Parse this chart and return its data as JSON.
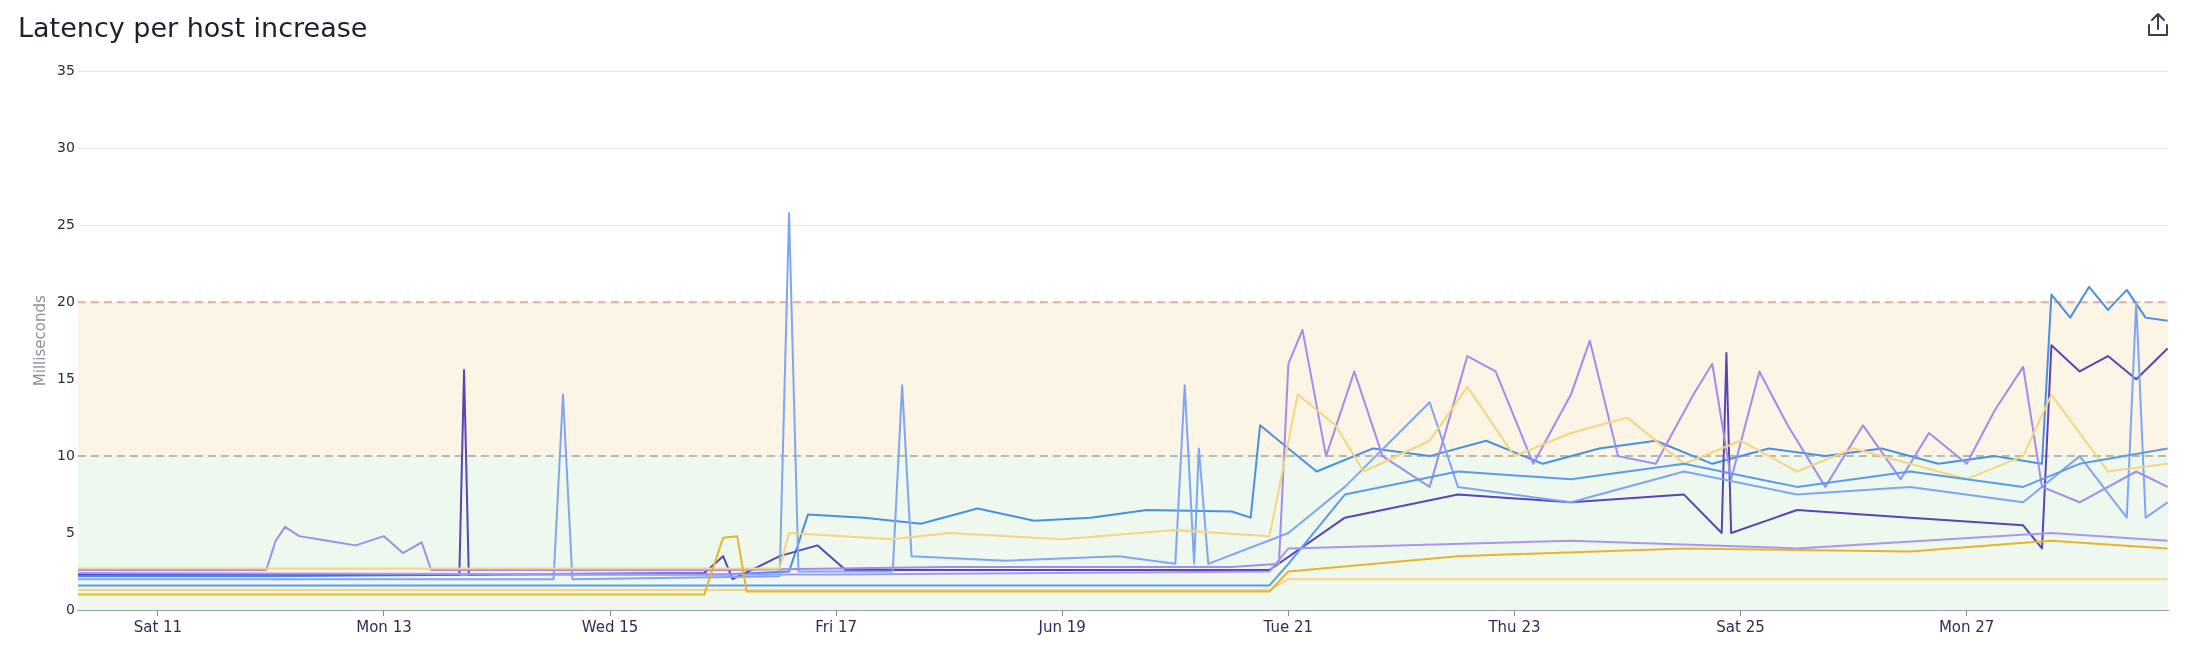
{
  "chart_data": {
    "type": "line",
    "title": "Latency per host increase",
    "ylabel": "Milliseconds",
    "ylim": [
      0,
      35
    ],
    "yticks": [
      0,
      5,
      10,
      15,
      20,
      25,
      30,
      35
    ],
    "xlim": [
      "--06-10T07:00",
      "--06-28T18:45"
    ],
    "xticks": [
      {
        "value": "--06-11",
        "label": "Sat 11"
      },
      {
        "value": "--06-13",
        "label": "Mon 13"
      },
      {
        "value": "--06-15",
        "label": "Wed 15"
      },
      {
        "value": "--06-17",
        "label": "Fri 17"
      },
      {
        "value": "--06-19",
        "label": "Jun 19"
      },
      {
        "value": "--06-21",
        "label": "Tue 21"
      },
      {
        "value": "--06-23",
        "label": "Thu 23"
      },
      {
        "value": "--06-25",
        "label": "Sat 25"
      },
      {
        "value": "--06-27",
        "label": "Mon 27"
      }
    ],
    "grid": "y",
    "legend": false,
    "line_style": "solid",
    "bands": [
      {
        "axis": "y",
        "from": 0,
        "to": 10,
        "color": "#eef8ef"
      },
      {
        "axis": "y",
        "from": 10,
        "to": 20,
        "color": "#fcf4e4"
      }
    ],
    "ref_lines": [
      {
        "axis": "y",
        "value": 20,
        "color": "#eea898",
        "line_style": "dashed"
      },
      {
        "axis": "y",
        "value": 10,
        "color": "#b4bca8",
        "line_style": "dashed"
      }
    ],
    "series": [
      {
        "color": "#e5b52e",
        "x": [
          "--06-10T07:00",
          "--06-15T20:00",
          "--06-16T00:00",
          "--06-16T03:00",
          "--06-16T05:00",
          "--06-20T20:00",
          "--06-21T00:00",
          "--06-22T12:00",
          "--06-24T12:00",
          "--06-26T12:00",
          "--06-27T18:00",
          "--06-28T18:40"
        ],
        "values": [
          1.0,
          1.0,
          4.7,
          4.8,
          1.2,
          1.2,
          2.5,
          3.5,
          4,
          3.8,
          4.5,
          4
        ]
      },
      {
        "color": "#f6d57e",
        "x": [
          "--06-10T07:00",
          "--06-20T20:00",
          "--06-21T00:00",
          "--06-28T18:40"
        ],
        "values": [
          1.3,
          1.3,
          2,
          2
        ]
      },
      {
        "color": "#a996f2",
        "x": [
          "--06-10T07:00",
          "--06-17T00:00",
          "--06-20T20:00",
          "--06-21T00:00",
          "--06-23T12:00",
          "--06-25T12:00",
          "--06-27T18:00",
          "--06-28T18:40"
        ],
        "values": [
          2.4,
          2.3,
          2.5,
          4,
          4.5,
          4,
          5,
          4.5
        ]
      },
      {
        "color": "#5b9be8",
        "x": [
          "--06-10T07:00",
          "--06-20T20:00",
          "--06-21T00:00",
          "--06-21T12:00",
          "--06-22T12:00",
          "--06-23T12:00",
          "--06-24T12:00",
          "--06-25T12:00",
          "--06-26T12:00",
          "--06-27T12:00",
          "--06-28T00:00",
          "--06-28T18:40"
        ],
        "values": [
          1.6,
          1.6,
          3,
          7.5,
          9,
          8.5,
          9.5,
          8,
          9,
          8,
          9.5,
          10.5
        ]
      },
      {
        "color": "#f6d57e",
        "x": [
          "--06-10T07:00",
          "--06-16T12:00",
          "--06-16T14:00",
          "--06-17T12:00",
          "--06-18T00:00",
          "--06-19T00:00",
          "--06-20T00:00",
          "--06-20T20:00",
          "--06-21T02:00",
          "--06-21T10:00",
          "--06-21T16:00",
          "--06-22T06:00",
          "--06-22T14:00",
          "--06-23T00:00",
          "--06-23T12:00",
          "--06-24T00:00",
          "--06-24T12:00",
          "--06-25T00:00",
          "--06-25T12:00",
          "--06-26T00:00",
          "--06-26T12:00",
          "--06-27T00:00",
          "--06-27T12:00",
          "--06-27T18:00",
          "--06-28T06:00",
          "--06-28T18:40"
        ],
        "values": [
          2.7,
          2.7,
          5,
          4.6,
          5.0,
          4.6,
          5.2,
          4.8,
          14,
          12,
          9,
          11,
          14.5,
          10,
          11.5,
          12.5,
          9.5,
          11,
          9,
          10.5,
          9.5,
          8.5,
          10,
          14,
          9,
          9.5
        ]
      },
      {
        "color": "#a18cf0",
        "x": [
          "--06-10T07:00",
          "--06-11T23:00",
          "--06-12T01:00",
          "--06-12T03:00",
          "--06-12T06:00",
          "--06-12T12:00",
          "--06-12T18:00",
          "--06-13T00:00",
          "--06-13T04:00",
          "--06-13T08:00",
          "--06-13T10:00",
          "--06-16T00:00",
          "--06-18T00:00",
          "--06-20T12:00",
          "--06-20T22:00",
          "--06-21T00:00",
          "--06-21T03:00",
          "--06-21T08:00",
          "--06-21T14:00",
          "--06-21T20:00",
          "--06-22T06:00",
          "--06-22T14:00",
          "--06-22T20:00",
          "--06-23T04:00",
          "--06-23T12:00",
          "--06-23T16:00",
          "--06-23T22:00",
          "--06-24T06:00",
          "--06-24T14:00",
          "--06-24T18:00",
          "--06-24T22:00",
          "--06-25T04:00",
          "--06-25T10:00",
          "--06-25T18:00",
          "--06-26T02:00",
          "--06-26T10:00",
          "--06-26T16:00",
          "--06-27T00:00",
          "--06-27T06:00",
          "--06-27T12:00",
          "--06-27T16:00",
          "--06-28T00:00",
          "--06-28T12:00",
          "--06-28T18:40"
        ],
        "values": [
          2.6,
          2.6,
          4.5,
          5.4,
          4.8,
          4.5,
          4.2,
          4.8,
          3.7,
          4.4,
          2.6,
          2.6,
          2.8,
          2.8,
          3,
          16,
          18.2,
          10,
          15.5,
          10,
          8,
          16.5,
          15.5,
          9.5,
          14,
          17.5,
          10,
          9.5,
          14,
          16,
          8.5,
          15.5,
          12,
          8,
          12,
          8.5,
          11.5,
          9.5,
          13,
          15.8,
          8,
          7,
          9,
          8
        ]
      },
      {
        "color": "#7ea6f2",
        "x": [
          "--06-10T07:00",
          "--06-14T12:00",
          "--06-14T14:00",
          "--06-14T16:00",
          "--06-16T12:00",
          "--06-16T14:00",
          "--06-16T16:00",
          "--06-17T12:00",
          "--06-17T14:00",
          "--06-17T16:00",
          "--06-18T12:00",
          "--06-19T12:00",
          "--06-20T00:00",
          "--06-20T02:00",
          "--06-20T04:00",
          "--06-20T05:00",
          "--06-20T07:00",
          "--06-21T00:00",
          "--06-21T12:00",
          "--06-22T06:00",
          "--06-22T12:00",
          "--06-23T12:00",
          "--06-24T12:00",
          "--06-25T12:00",
          "--06-26T12:00",
          "--06-27T12:00",
          "--06-28T00:00",
          "--06-28T10:00",
          "--06-28T12:00",
          "--06-28T14:00",
          "--06-28T18:40"
        ],
        "values": [
          2.0,
          2.0,
          14,
          2.0,
          2.2,
          25.8,
          2.5,
          2.5,
          14.6,
          3.5,
          3.2,
          3.5,
          3.0,
          14.6,
          3,
          10.5,
          3,
          5,
          8,
          13.5,
          8,
          7,
          9,
          7.5,
          8,
          7,
          10,
          6,
          20,
          6,
          7
        ]
      },
      {
        "color": "#5a45b5",
        "x": [
          "--06-10T07:00",
          "--06-13T16:00",
          "--06-13T17:00",
          "--06-13T18:00",
          "--06-15T20:00",
          "--06-16T00:00",
          "--06-16T02:00",
          "--06-16T12:00",
          "--06-16T20:00",
          "--06-17T02:00",
          "--06-20T20:00",
          "--06-21T12:00",
          "--06-22T12:00",
          "--06-23T12:00",
          "--06-24T12:00",
          "--06-24T20:00",
          "--06-24T21:00",
          "--06-24T22:00",
          "--06-25T12:00",
          "--06-26T12:00",
          "--06-27T12:00",
          "--06-27T16:00",
          "--06-27T18:00",
          "--06-28T00:00",
          "--06-28T06:00",
          "--06-28T12:00",
          "--06-28T18:40"
        ],
        "values": [
          2.3,
          2.3,
          15.6,
          2.3,
          2.4,
          3.5,
          2.0,
          3.5,
          4.2,
          2.6,
          2.6,
          6,
          7.5,
          7,
          7.5,
          5,
          16.7,
          5,
          6.5,
          6,
          5.5,
          4,
          17.2,
          15.5,
          16.5,
          15,
          17
        ]
      },
      {
        "color": "#4a90e2",
        "x": [
          "--06-10T07:00",
          "--06-12T00:00",
          "--06-14T00:00",
          "--06-16T00:00",
          "--06-16T14:00",
          "--06-16T18:00",
          "--06-17T06:00",
          "--06-17T18:00",
          "--06-18T06:00",
          "--06-18T18:00",
          "--06-19T06:00",
          "--06-19T18:00",
          "--06-20T12:00",
          "--06-20T16:00",
          "--06-20T18:00",
          "--06-21T06:00",
          "--06-21T18:00",
          "--06-22T06:00",
          "--06-22T18:00",
          "--06-23T06:00",
          "--06-23T18:00",
          "--06-24T06:00",
          "--06-24T18:00",
          "--06-25T06:00",
          "--06-25T18:00",
          "--06-26T06:00",
          "--06-26T18:00",
          "--06-27T06:00",
          "--06-27T16:00",
          "--06-27T18:00",
          "--06-27T22:00",
          "--06-28T02:00",
          "--06-28T06:00",
          "--06-28T10:00",
          "--06-28T14:00",
          "--06-28T18:40"
        ],
        "values": [
          2.2,
          2.2,
          2.3,
          2.3,
          2.5,
          6.2,
          6.0,
          5.6,
          6.6,
          5.8,
          6.0,
          6.5,
          6.4,
          6.0,
          12,
          9,
          10.5,
          10,
          11,
          9.5,
          10.5,
          11,
          9.5,
          10.5,
          10,
          10.5,
          9.5,
          10,
          9.5,
          20.5,
          19,
          21,
          19.5,
          20.8,
          19,
          18.8
        ]
      }
    ]
  }
}
